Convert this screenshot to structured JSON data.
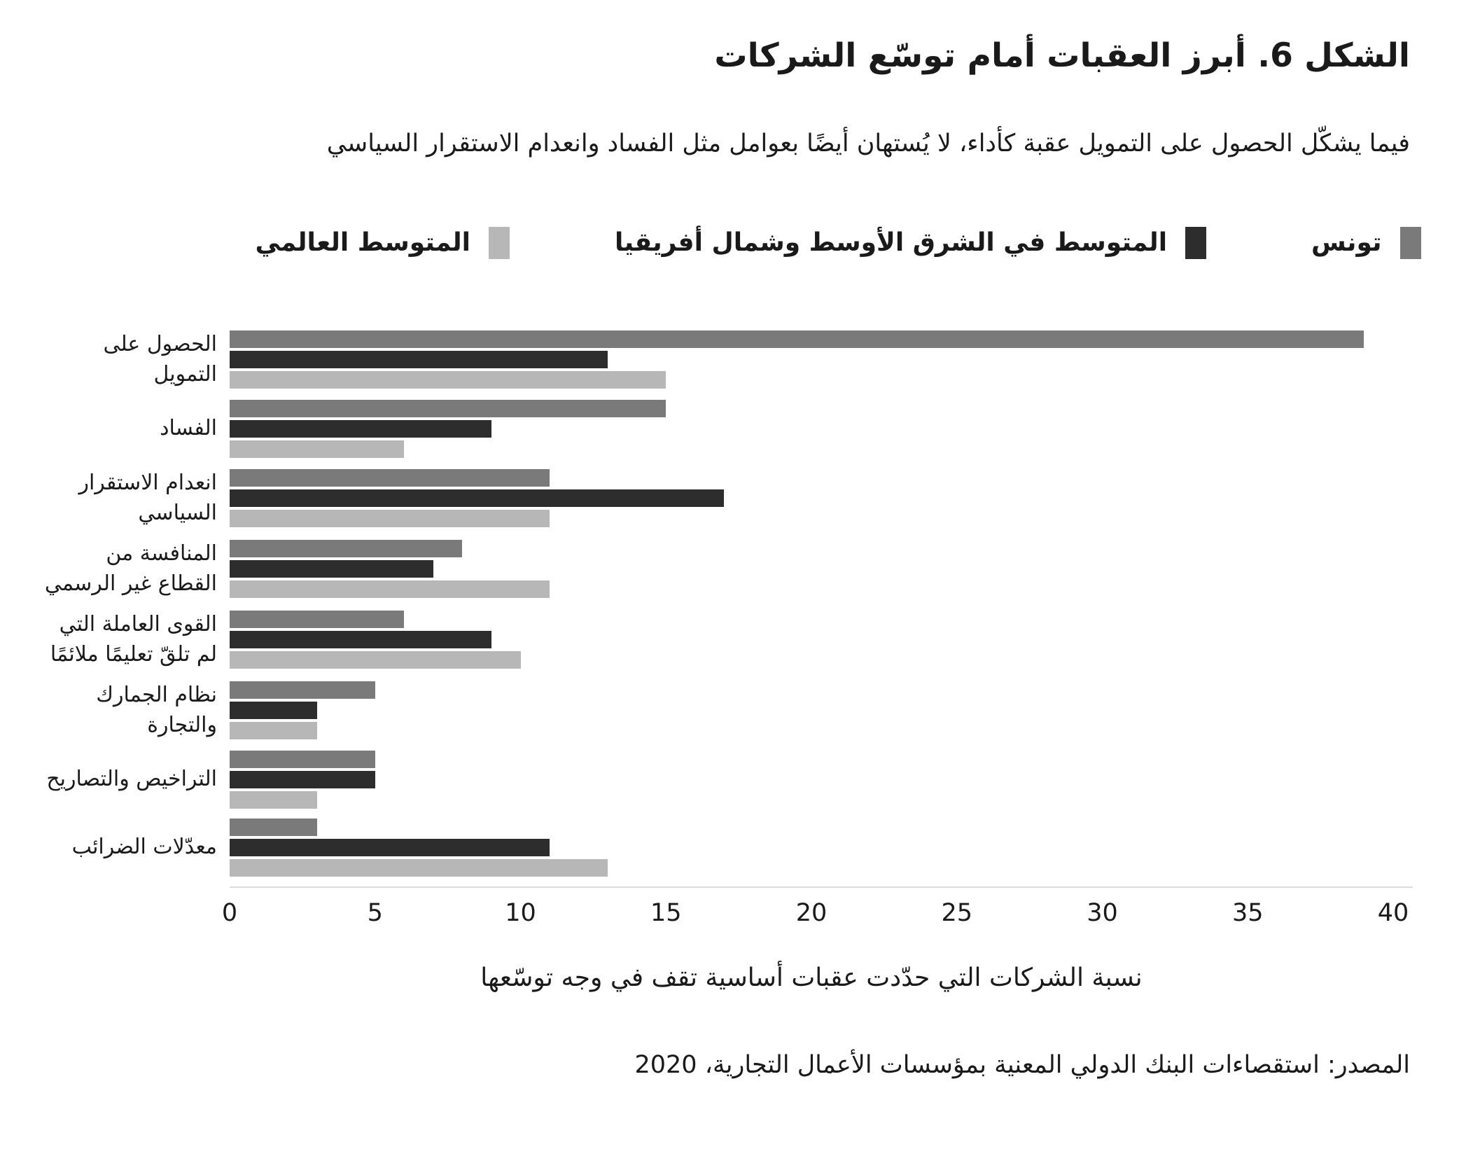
{
  "title": "الشكل 6. أبرز العقبات أمام توسّع الشركات",
  "subtitle": "فيما يشكّل الحصول على التمويل عقبة كأداء، لا يُستهان أيضًا بعوامل مثل الفساد وانعدام الاستقرار السياسي",
  "legend": [
    {
      "id": "tunisia",
      "label": "تونس",
      "color": "#7a7a7a"
    },
    {
      "id": "mena-average",
      "label": "المتوسط في الشرق الأوسط وشمال أفريقيا",
      "color": "#2d2d2d"
    },
    {
      "id": "world-average",
      "label": "المتوسط العالمي",
      "color": "#b7b7b7"
    }
  ],
  "chart_data": {
    "type": "bar",
    "orientation": "horizontal",
    "title": "الشكل 6. أبرز العقبات أمام توسّع الشركات",
    "subtitle": "فيما يشكّل الحصول على التمويل عقبة كأداء، لا يُستهان أيضًا بعوامل مثل الفساد وانعدام الاستقرار السياسي",
    "categories": [
      "الحصول على التمويل",
      "الفساد",
      "انعدام الاستقرار السياسي",
      "المنافسة من القطاع غير الرسمي",
      "القوى العاملة التي لم تلقّ تعليمًا ملائمًا",
      "نظام الجمارك والتجارة",
      "التراخيص والتصاريح",
      "معدّلات الضرائب"
    ],
    "series": [
      {
        "id": "tunisia",
        "name": "تونس",
        "color": "#7a7a7a",
        "values": [
          39,
          15,
          11,
          8,
          6,
          5,
          5,
          3
        ]
      },
      {
        "id": "mena-average",
        "name": "المتوسط في الشرق الأوسط وشمال أفريقيا",
        "color": "#2d2d2d",
        "values": [
          13,
          9,
          17,
          7,
          9,
          3,
          5,
          11
        ]
      },
      {
        "id": "world-average",
        "name": "المتوسط العالمي",
        "color": "#b7b7b7",
        "values": [
          15,
          6,
          11,
          11,
          10,
          3,
          3,
          13
        ]
      }
    ],
    "xlabel": "نسبة الشركات التي حدّدت عقبات أساسية تقف في وجه توسّعها",
    "ylabel": "",
    "xlim": [
      0,
      40
    ],
    "xticks": [
      0,
      5,
      10,
      15,
      20,
      25,
      30,
      35,
      40
    ],
    "grid": false,
    "legend_position": "top"
  },
  "source": "المصدر: استقصاءات البنك الدولي المعنية بمؤسسات الأعمال التجارية، 2020"
}
